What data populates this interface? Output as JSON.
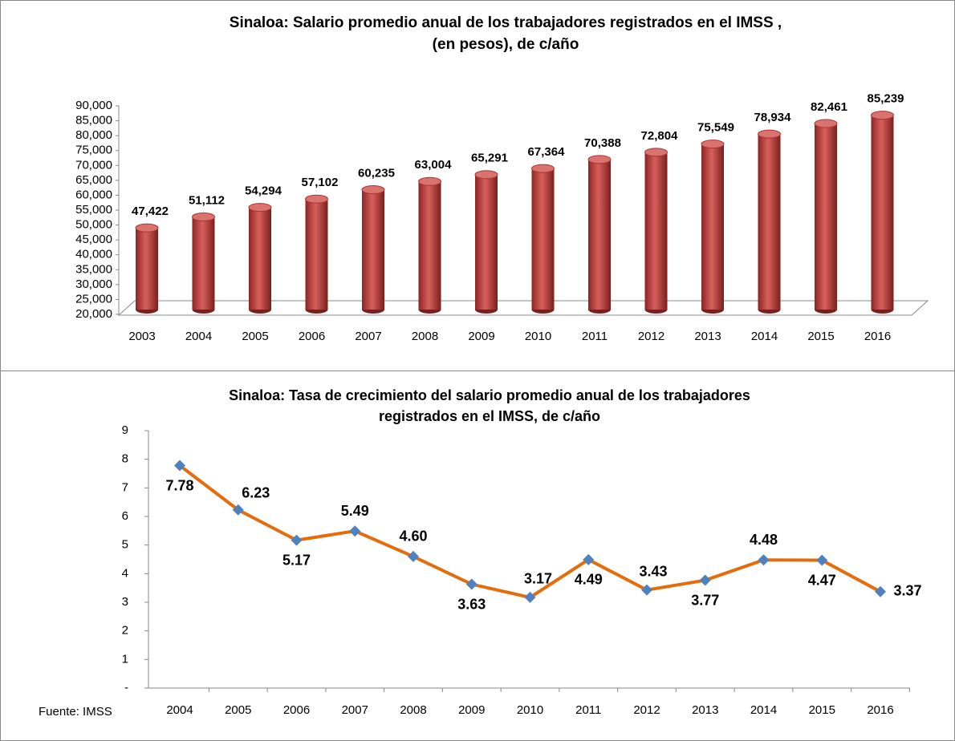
{
  "chart_data": [
    {
      "type": "bar3d",
      "title": [
        "Sinaloa: Salario promedio anual de los trabajadores registrados en el IMSS ,",
        "(en pesos), de c/año"
      ],
      "categories": [
        "2003",
        "2004",
        "2005",
        "2006",
        "2007",
        "2008",
        "2009",
        "2010",
        "2011",
        "2012",
        "2013",
        "2014",
        "2015",
        "2016"
      ],
      "values": [
        47422,
        51112,
        54294,
        57102,
        60235,
        63004,
        65291,
        67364,
        70388,
        72804,
        75549,
        78934,
        82461,
        85239
      ],
      "value_labels": [
        "47,422",
        "51,112",
        "54,294",
        "57,102",
        "60,235",
        "63,004",
        "65,291",
        "67,364",
        "70,388",
        "72,804",
        "75,549",
        "78,934",
        "82,461",
        "85,239"
      ],
      "color": "#c0504d",
      "ylim": [
        20000,
        90000
      ],
      "yticks": [
        {
          "value": 20000,
          "label": "20,000"
        },
        {
          "value": 25000,
          "label": "25,000"
        },
        {
          "value": 30000,
          "label": "30,000"
        },
        {
          "value": 35000,
          "label": "35,000"
        },
        {
          "value": 40000,
          "label": "40,000"
        },
        {
          "value": 45000,
          "label": "45,000"
        },
        {
          "value": 50000,
          "label": "50,000"
        },
        {
          "value": 55000,
          "label": "55,000"
        },
        {
          "value": 60000,
          "label": "60,000"
        },
        {
          "value": 65000,
          "label": "65,000"
        },
        {
          "value": 70000,
          "label": "70,000"
        },
        {
          "value": 75000,
          "label": "75,000"
        },
        {
          "value": 80000,
          "label": "80,000"
        },
        {
          "value": 85000,
          "label": "85,000"
        },
        {
          "value": 90000,
          "label": "90,000"
        }
      ]
    },
    {
      "type": "line",
      "title": [
        "Sinaloa: Tasa de crecimiento del salario promedio anual de los trabajadores",
        "registrados en el IMSS, de c/año"
      ],
      "categories": [
        "2004",
        "2005",
        "2006",
        "2007",
        "2008",
        "2009",
        "2010",
        "2011",
        "2012",
        "2013",
        "2014",
        "2015",
        "2016"
      ],
      "values": [
        7.78,
        6.23,
        5.17,
        5.49,
        4.6,
        3.63,
        3.17,
        4.49,
        3.43,
        3.77,
        4.48,
        4.47,
        3.37
      ],
      "value_labels": [
        "7.78",
        "6.23",
        "5.17",
        "5.49",
        "4.60",
        "3.63",
        "3.17",
        "4.49",
        "3.43",
        "3.77",
        "4.48",
        "4.47",
        "3.37"
      ],
      "color": "#e46c0a",
      "marker_color": "#4f81bd",
      "ylim": [
        0,
        9
      ],
      "yticks": [
        {
          "value": 0,
          "label": "-"
        },
        1,
        2,
        3,
        4,
        5,
        6,
        7,
        8,
        9
      ],
      "source": "Fuente: IMSS"
    }
  ]
}
